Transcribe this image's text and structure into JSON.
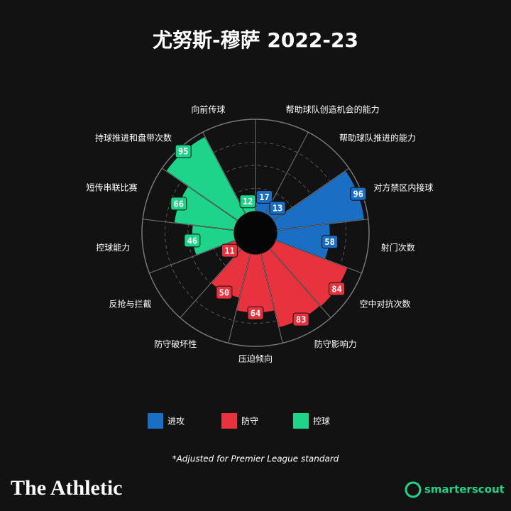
{
  "chart_data": {
    "type": "polar_bar",
    "title": "尤努斯-穆萨 2022-23",
    "categories": [
      "帮助球队创造机会的能力",
      "帮助球队推进的能力",
      "对方禁区内接球",
      "射门次数",
      "空中对抗次数",
      "防守影响力",
      "压迫倾向",
      "防守破坏性",
      "反抢与拦截",
      "控球能力",
      "短传串联比赛",
      "持球推进和盘带次数",
      "向前传球"
    ],
    "series": [
      {
        "name": "进攻",
        "color": "#1a6fc4",
        "values": [
          17,
          13,
          96,
          58,
          null,
          null,
          null,
          null,
          null,
          null,
          null,
          null,
          null
        ]
      },
      {
        "name": "防守",
        "color": "#e8333f",
        "values": [
          null,
          null,
          null,
          null,
          84,
          83,
          64,
          50,
          11,
          null,
          null,
          null,
          null
        ]
      },
      {
        "name": "控球",
        "color": "#1ed38a",
        "values": [
          null,
          null,
          null,
          null,
          null,
          null,
          null,
          null,
          null,
          46,
          66,
          95,
          12
        ]
      }
    ],
    "ylim": [
      0,
      100
    ],
    "yticks": [
      25,
      50,
      75,
      100
    ],
    "grid": true,
    "footnote": "*Adjusted for Premier League standard",
    "brand": "The Athletic",
    "source": "smarterscout"
  }
}
